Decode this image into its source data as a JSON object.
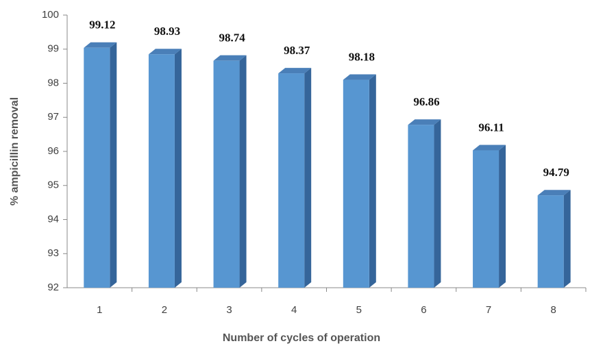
{
  "chart_data": {
    "type": "bar3d",
    "xlabel": "Number of cycles of operation",
    "ylabel": "% ampicillin removal",
    "categories": [
      "1",
      "2",
      "3",
      "4",
      "5",
      "6",
      "7",
      "8"
    ],
    "values": [
      99.12,
      98.93,
      98.74,
      98.37,
      98.18,
      96.86,
      96.11,
      94.79
    ],
    "color": "#5796d1",
    "ylim": [
      92,
      100
    ],
    "yticks": [
      92,
      93,
      94,
      95,
      96,
      97,
      98,
      99,
      100
    ]
  }
}
